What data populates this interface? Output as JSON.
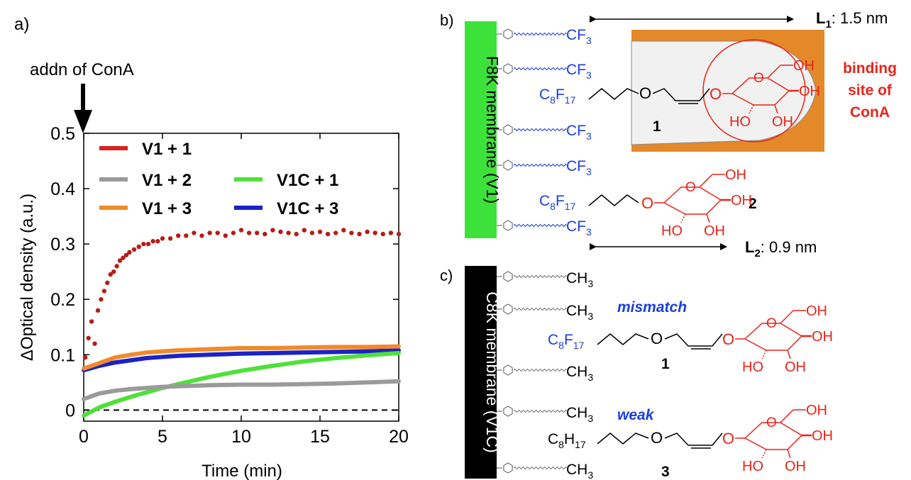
{
  "panel_labels": {
    "a": "a)",
    "b": "b)",
    "c": "c)"
  },
  "arrow_label": "addn of ConA",
  "chart_data": {
    "type": "scatter",
    "xlabel": "Time (min)",
    "ylabel": "ΔOptical density (a.u.)",
    "xlim": [
      0,
      20
    ],
    "ylim": [
      -0.02,
      0.5
    ],
    "xticks": [
      "0",
      "5",
      "10",
      "15",
      "20"
    ],
    "yticks": [
      "0",
      "0.1",
      "0.2",
      "0.3",
      "0.4",
      "0.5"
    ],
    "baseline": 0,
    "legend": [
      {
        "name": "V1 + 1",
        "color": "#d8221b"
      },
      {
        "name": "V1 + 2",
        "color": "#9a9a9a"
      },
      {
        "name": "V1 + 3",
        "color": "#f08a2a"
      },
      {
        "name": "V1C + 1",
        "color": "#4fe03a"
      },
      {
        "name": "V1C + 3",
        "color": "#1a22c8"
      }
    ],
    "series": [
      {
        "name": "V1 + 1",
        "color": "#b51d17",
        "style": "dots",
        "x": [
          0.1,
          0.3,
          0.5,
          0.7,
          0.9,
          1.1,
          1.3,
          1.5,
          1.7,
          1.9,
          2.1,
          2.3,
          2.5,
          2.7,
          2.9,
          3.2,
          3.5,
          3.8,
          4.1,
          4.4,
          4.7,
          5.0,
          5.5,
          6,
          6.5,
          7,
          7.5,
          8,
          8.5,
          9,
          9.5,
          10,
          10.5,
          11,
          11.5,
          12,
          12.5,
          13,
          13.5,
          14,
          14.5,
          15,
          15.5,
          16,
          16.5,
          17,
          17.5,
          18,
          18.5,
          19,
          19.5,
          20
        ],
        "values": [
          0.095,
          0.13,
          0.16,
          0.12,
          0.18,
          0.2,
          0.215,
          0.23,
          0.245,
          0.25,
          0.26,
          0.27,
          0.275,
          0.28,
          0.285,
          0.29,
          0.295,
          0.3,
          0.3,
          0.305,
          0.305,
          0.31,
          0.31,
          0.315,
          0.315,
          0.32,
          0.315,
          0.32,
          0.32,
          0.315,
          0.32,
          0.325,
          0.32,
          0.32,
          0.318,
          0.325,
          0.322,
          0.32,
          0.318,
          0.325,
          0.32,
          0.322,
          0.318,
          0.32,
          0.325,
          0.32,
          0.318,
          0.322,
          0.32,
          0.318,
          0.32,
          0.318
        ]
      },
      {
        "name": "V1 + 2",
        "color": "#9a9a9a",
        "style": "line",
        "x": [
          0,
          1,
          2,
          3,
          4,
          5,
          6,
          8,
          10,
          12,
          14,
          16,
          18,
          20
        ],
        "values": [
          0.02,
          0.03,
          0.035,
          0.038,
          0.04,
          0.042,
          0.043,
          0.045,
          0.046,
          0.046,
          0.047,
          0.048,
          0.05,
          0.052
        ]
      },
      {
        "name": "V1 + 3",
        "color": "#f08a2a",
        "style": "line",
        "x": [
          0,
          1,
          2,
          3,
          4,
          5,
          6,
          8,
          10,
          12,
          14,
          16,
          18,
          20
        ],
        "values": [
          0.075,
          0.085,
          0.095,
          0.1,
          0.104,
          0.106,
          0.108,
          0.11,
          0.112,
          0.112,
          0.113,
          0.114,
          0.114,
          0.115
        ]
      },
      {
        "name": "V1C + 1",
        "color": "#4fe03a",
        "style": "line",
        "x": [
          0,
          1,
          2,
          3,
          4,
          5,
          6,
          8,
          10,
          12,
          14,
          16,
          18,
          20
        ],
        "values": [
          -0.01,
          0.005,
          0.015,
          0.024,
          0.032,
          0.04,
          0.047,
          0.06,
          0.071,
          0.08,
          0.088,
          0.094,
          0.099,
          0.103
        ]
      },
      {
        "name": "V1C + 3",
        "color": "#1a22c8",
        "style": "line",
        "x": [
          0,
          1,
          2,
          3,
          4,
          5,
          6,
          8,
          10,
          12,
          14,
          16,
          18,
          20
        ],
        "values": [
          0.072,
          0.08,
          0.086,
          0.09,
          0.094,
          0.096,
          0.098,
          0.1,
          0.102,
          0.103,
          0.104,
          0.105,
          0.106,
          0.108
        ]
      }
    ]
  },
  "panel_b": {
    "membrane_label": "F8K membrane (V1)",
    "membrane_color": "#3ce23a",
    "cf3": "CF",
    "sub3": "3",
    "c8f": "C",
    "sub8": "8",
    "f17": "F",
    "sub17": "17",
    "compound1": "1",
    "compound2": "2",
    "binding": [
      "binding",
      "site of",
      "ConA"
    ],
    "l1_main": "L",
    "l1_sub": "1",
    "l1_val": ": 1.5 nm",
    "l2_main": "L",
    "l2_sub": "2",
    "l2_val": ": 0.9 nm",
    "oh": "OH",
    "ho": "HO",
    "o": "O",
    "pocket_color": "#e3892a"
  },
  "panel_c": {
    "membrane_label": "C8K membrane (V1C)",
    "ch3": "CH",
    "sub3": "3",
    "c8h": "C",
    "sub8": "8",
    "h17": "H",
    "sub17": "17",
    "mismatch": "mismatch",
    "weak": "weak",
    "compound1": "1",
    "compound3": "3"
  }
}
